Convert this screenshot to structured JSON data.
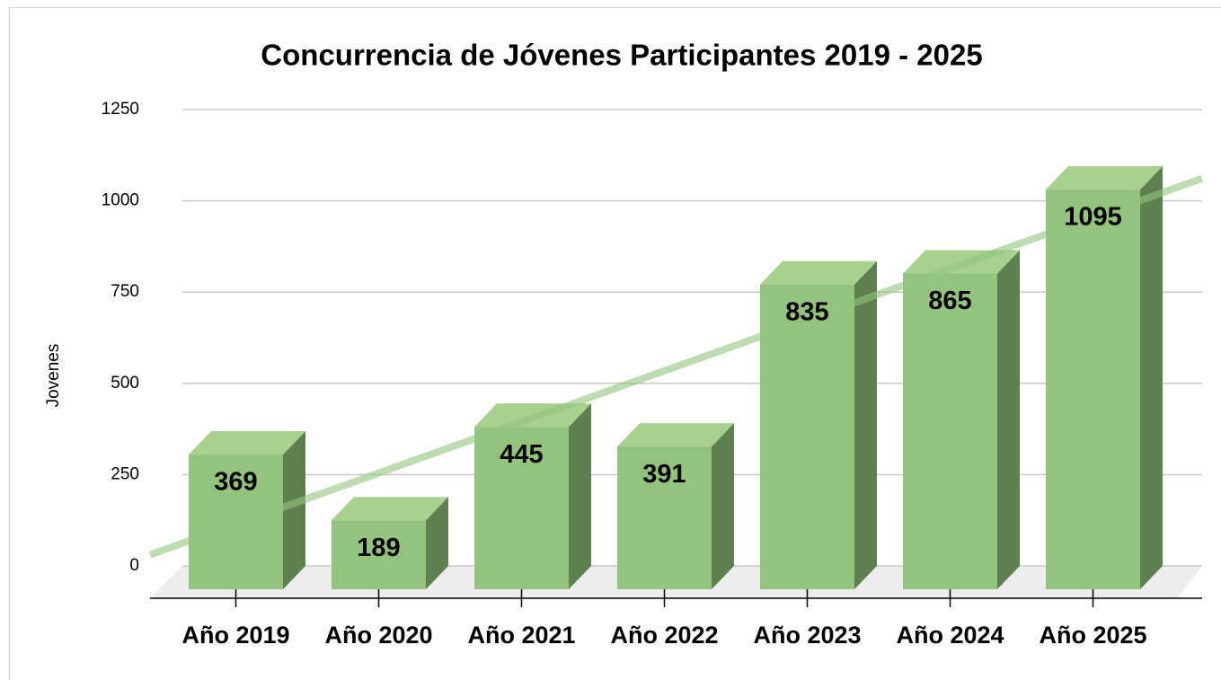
{
  "chart_data": {
    "type": "bar",
    "title": "Concurrencia de Jóvenes Participantes 2019 - 2025",
    "ylabel": "Jovenes",
    "categories": [
      "Año 2019",
      "Año 2020",
      "Año 2021",
      "Año 2022",
      "Año 2023",
      "Año 2024",
      "Año 2025"
    ],
    "values": [
      369,
      189,
      445,
      391,
      835,
      865,
      1095
    ],
    "color": "#93c47d",
    "ylim": [
      0,
      1250
    ],
    "yticks": [
      0,
      250,
      500,
      750,
      1000,
      1250
    ],
    "grid": true,
    "trendline": "linear",
    "trendline_color": "#93c47d"
  }
}
